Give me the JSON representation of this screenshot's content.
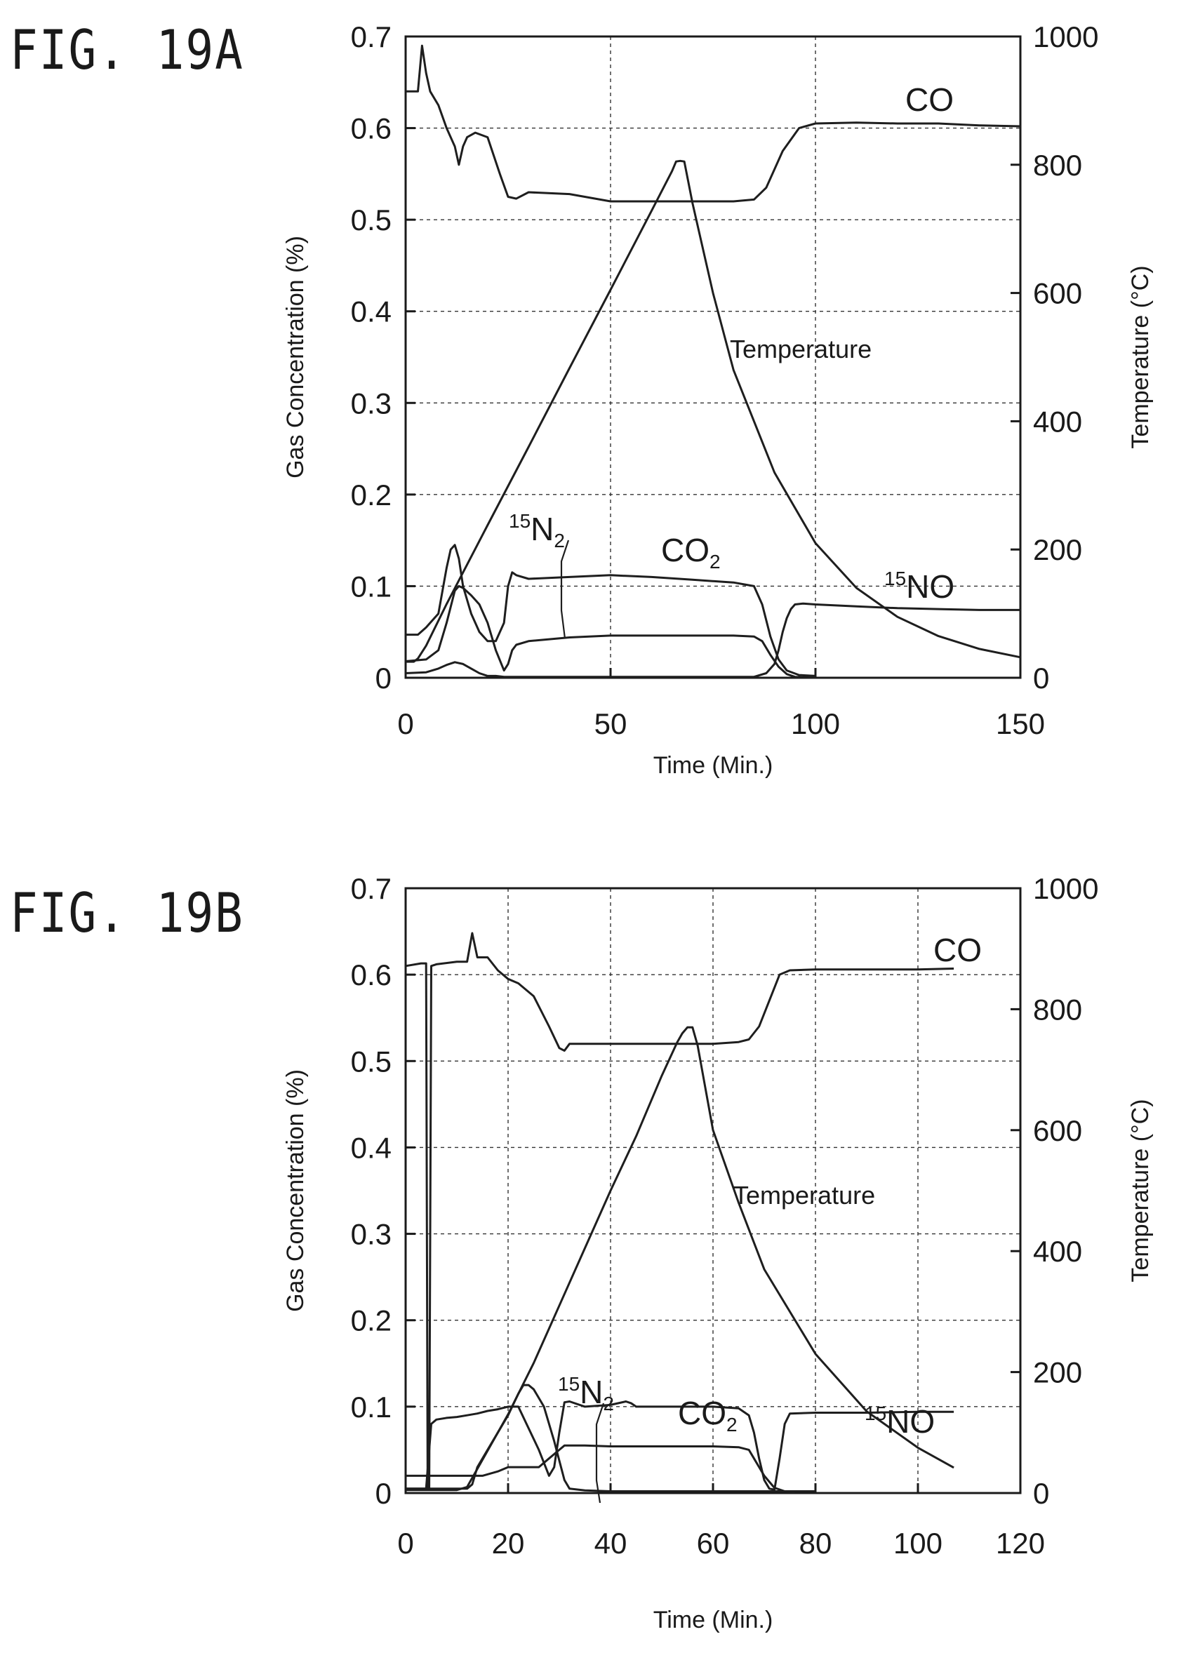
{
  "figures": [
    {
      "label": "FIG. 19A",
      "chart_data": {
        "type": "line",
        "xlabel": "Time (Min.)",
        "ylabel": "Gas Concentration (%)",
        "y2label": "Temperature (°C)",
        "xlim": [
          0,
          150
        ],
        "ylim": [
          0,
          0.7
        ],
        "y2lim": [
          0,
          1000
        ],
        "xticks": [
          "0",
          "50",
          "100",
          "150"
        ],
        "yticks": [
          "0",
          "0.1",
          "0.2",
          "0.3",
          "0.4",
          "0.5",
          "0.6",
          "0.7"
        ],
        "y2ticks": [
          "0",
          "200",
          "400",
          "600",
          "800",
          "1000"
        ],
        "grid": true,
        "annotations": {
          "co": "CO",
          "co2": "CO",
          "co2_sub": "2",
          "n2_sup": "15",
          "n2": "N",
          "n2_sub": "2",
          "no_sup": "15",
          "no": "NO",
          "temp": "Temperature"
        },
        "series": [
          {
            "name": "CO",
            "axis": "left",
            "x": [
              0,
              3,
              4,
              5,
              6,
              8,
              10,
              12,
              13,
              14,
              15,
              17,
              20,
              23,
              25,
              27,
              30,
              40,
              50,
              60,
              70,
              80,
              85,
              88,
              92,
              96,
              100,
              110,
              120,
              130,
              140,
              150
            ],
            "y": [
              0.64,
              0.64,
              0.69,
              0.66,
              0.64,
              0.625,
              0.6,
              0.58,
              0.56,
              0.58,
              0.59,
              0.595,
              0.59,
              0.55,
              0.525,
              0.523,
              0.53,
              0.528,
              0.52,
              0.52,
              0.52,
              0.52,
              0.522,
              0.535,
              0.575,
              0.6,
              0.605,
              0.606,
              0.605,
              0.605,
              0.603,
              0.602
            ]
          },
          {
            "name": "CO2",
            "axis": "left",
            "x": [
              0,
              3,
              5,
              8,
              10,
              11,
              12,
              13,
              14,
              16,
              18,
              20,
              22,
              24,
              25,
              26,
              27,
              30,
              40,
              50,
              60,
              70,
              80,
              85,
              87,
              89,
              91,
              93,
              96,
              100
            ],
            "y": [
              0.047,
              0.047,
              0.055,
              0.07,
              0.12,
              0.14,
              0.145,
              0.13,
              0.1,
              0.07,
              0.05,
              0.04,
              0.04,
              0.06,
              0.1,
              0.115,
              0.112,
              0.108,
              0.11,
              0.112,
              0.11,
              0.107,
              0.104,
              0.1,
              0.08,
              0.045,
              0.02,
              0.008,
              0.003,
              0.002
            ]
          },
          {
            "name": "15N2",
            "axis": "left",
            "x": [
              0,
              5,
              8,
              10,
              12,
              13,
              14,
              16,
              18,
              20,
              22,
              24,
              25,
              26,
              27,
              30,
              40,
              50,
              60,
              70,
              80,
              85,
              87,
              89,
              91,
              93,
              95,
              100
            ],
            "y": [
              0.018,
              0.02,
              0.03,
              0.06,
              0.095,
              0.1,
              0.098,
              0.09,
              0.08,
              0.06,
              0.03,
              0.008,
              0.015,
              0.03,
              0.036,
              0.04,
              0.044,
              0.046,
              0.046,
              0.046,
              0.046,
              0.045,
              0.04,
              0.025,
              0.012,
              0.004,
              0.001,
              0.0
            ]
          },
          {
            "name": "15NO",
            "axis": "left",
            "x": [
              0,
              5,
              8,
              10,
              12,
              14,
              16,
              18,
              20,
              22,
              24,
              26,
              28,
              30,
              40,
              50,
              60,
              70,
              80,
              85,
              88,
              90,
              91,
              92,
              93,
              94,
              95,
              97,
              100,
              110,
              120,
              130,
              140,
              150
            ],
            "y": [
              0.005,
              0.006,
              0.01,
              0.014,
              0.017,
              0.015,
              0.01,
              0.005,
              0.002,
              0.002,
              0.001,
              0.001,
              0.001,
              0.001,
              0.001,
              0.001,
              0.001,
              0.001,
              0.001,
              0.001,
              0.005,
              0.015,
              0.03,
              0.05,
              0.065,
              0.075,
              0.08,
              0.081,
              0.08,
              0.078,
              0.076,
              0.075,
              0.074,
              0.074
            ]
          },
          {
            "name": "Temperature",
            "axis": "right",
            "x": [
              0,
              2,
              3,
              5,
              10,
              20,
              30,
              40,
              50,
              60,
              65,
              66,
              67,
              68,
              70,
              75,
              80,
              90,
              100,
              110,
              120,
              130,
              140,
              150
            ],
            "y": [
              25,
              25,
              30,
              50,
              115,
              238,
              360,
              483,
              605,
              728,
              790,
              805,
              806,
              805,
              740,
              600,
              480,
              320,
              210,
              140,
              95,
              65,
              45,
              32
            ]
          }
        ]
      }
    },
    {
      "label": "FIG. 19B",
      "chart_data": {
        "type": "line",
        "xlabel": "Time (Min.)",
        "ylabel": "Gas Concentration (%)",
        "y2label": "Temperature (°C)",
        "xlim": [
          0,
          120
        ],
        "ylim": [
          0,
          0.7
        ],
        "y2lim": [
          0,
          1000
        ],
        "xticks": [
          "0",
          "20",
          "40",
          "60",
          "80",
          "100",
          "120"
        ],
        "yticks": [
          "0",
          "0.1",
          "0.2",
          "0.3",
          "0.4",
          "0.5",
          "0.6",
          "0.7"
        ],
        "y2ticks": [
          "0",
          "200",
          "400",
          "600",
          "800",
          "1000"
        ],
        "grid": true,
        "annotations": {
          "co": "CO",
          "co2": "CO",
          "co2_sub": "2",
          "n2_sup": "15",
          "n2": "N",
          "n2_sub": "2",
          "no_sup": "15",
          "no": "NO",
          "temp": "Temperature"
        },
        "series": [
          {
            "name": "CO",
            "axis": "left",
            "x": [
              0,
              3,
              4,
              4.3,
              4.6,
              5,
              6,
              10,
              12,
              13,
              14,
              16,
              18,
              20,
              22,
              25,
              28,
              30,
              31,
              32,
              35,
              40,
              50,
              60,
              65,
              67,
              69,
              71,
              73,
              75,
              80,
              90,
              100,
              107
            ],
            "y": [
              0.61,
              0.613,
              0.613,
              0.005,
              0.005,
              0.61,
              0.612,
              0.615,
              0.615,
              0.648,
              0.62,
              0.62,
              0.605,
              0.595,
              0.59,
              0.575,
              0.54,
              0.515,
              0.512,
              0.52,
              0.52,
              0.52,
              0.52,
              0.52,
              0.522,
              0.525,
              0.54,
              0.57,
              0.6,
              0.605,
              0.606,
              0.606,
              0.606,
              0.607
            ]
          },
          {
            "name": "CO2",
            "axis": "left",
            "x": [
              0,
              12,
              13,
              14,
              16,
              18,
              20,
              22,
              23,
              24,
              25,
              27,
              29,
              31,
              32,
              35,
              40,
              43,
              46,
              50,
              60,
              65,
              67,
              69,
              70,
              71,
              72,
              74,
              77,
              80
            ],
            "y": [
              0.005,
              0.005,
              0.01,
              0.03,
              0.05,
              0.07,
              0.09,
              0.115,
              0.125,
              0.125,
              0.12,
              0.1,
              0.06,
              0.015,
              0.005,
              0.003,
              0.002,
              0.002,
              0.002,
              0.002,
              0.002,
              0.002,
              0.002,
              0.002,
              0.002,
              0.002,
              0.002,
              0.002,
              0.002,
              0.002
            ]
          },
          {
            "name": "15N2",
            "axis": "left",
            "x": [
              0,
              4,
              5,
              10,
              15,
              18,
              20,
              22,
              24,
              26,
              28,
              30,
              31,
              32,
              35,
              40,
              50,
              60,
              65,
              67,
              68,
              70,
              72,
              74,
              76
            ],
            "y": [
              0.02,
              0.02,
              0.02,
              0.02,
              0.02,
              0.025,
              0.03,
              0.03,
              0.03,
              0.03,
              0.04,
              0.05,
              0.055,
              0.055,
              0.055,
              0.054,
              0.054,
              0.054,
              0.053,
              0.05,
              0.04,
              0.02,
              0.006,
              0.002,
              0.001
            ]
          },
          {
            "name": "15NO",
            "axis": "left",
            "x": [
              0,
              4,
              5,
              6,
              8,
              10,
              12,
              14,
              16,
              18,
              20,
              22,
              26,
              28,
              29,
              30,
              31,
              32,
              35,
              40,
              43,
              44,
              45,
              50,
              60,
              65,
              67,
              68,
              69,
              70,
              71,
              72,
              73,
              74,
              75,
              80,
              90,
              100,
              107
            ],
            "y": [
              0.005,
              0.005,
              0.08,
              0.085,
              0.087,
              0.088,
              0.09,
              0.092,
              0.095,
              0.097,
              0.1,
              0.1,
              0.05,
              0.02,
              0.03,
              0.07,
              0.105,
              0.106,
              0.1,
              0.102,
              0.106,
              0.104,
              0.1,
              0.1,
              0.1,
              0.098,
              0.09,
              0.07,
              0.04,
              0.015,
              0.005,
              0.004,
              0.04,
              0.08,
              0.092,
              0.093,
              0.093,
              0.094,
              0.094
            ]
          },
          {
            "name": "Temperature",
            "axis": "right",
            "x": [
              0,
              10,
              12,
              15,
              20,
              25,
              30,
              35,
              40,
              45,
              50,
              53,
              54,
              55,
              56,
              57,
              60,
              65,
              70,
              80,
              90,
              100,
              107
            ],
            "y": [
              5,
              5,
              10,
              55,
              130,
              215,
              310,
              405,
              500,
              590,
              690,
              745,
              760,
              770,
              770,
              740,
              600,
              480,
              370,
              230,
              135,
              75,
              42
            ]
          }
        ]
      }
    }
  ]
}
